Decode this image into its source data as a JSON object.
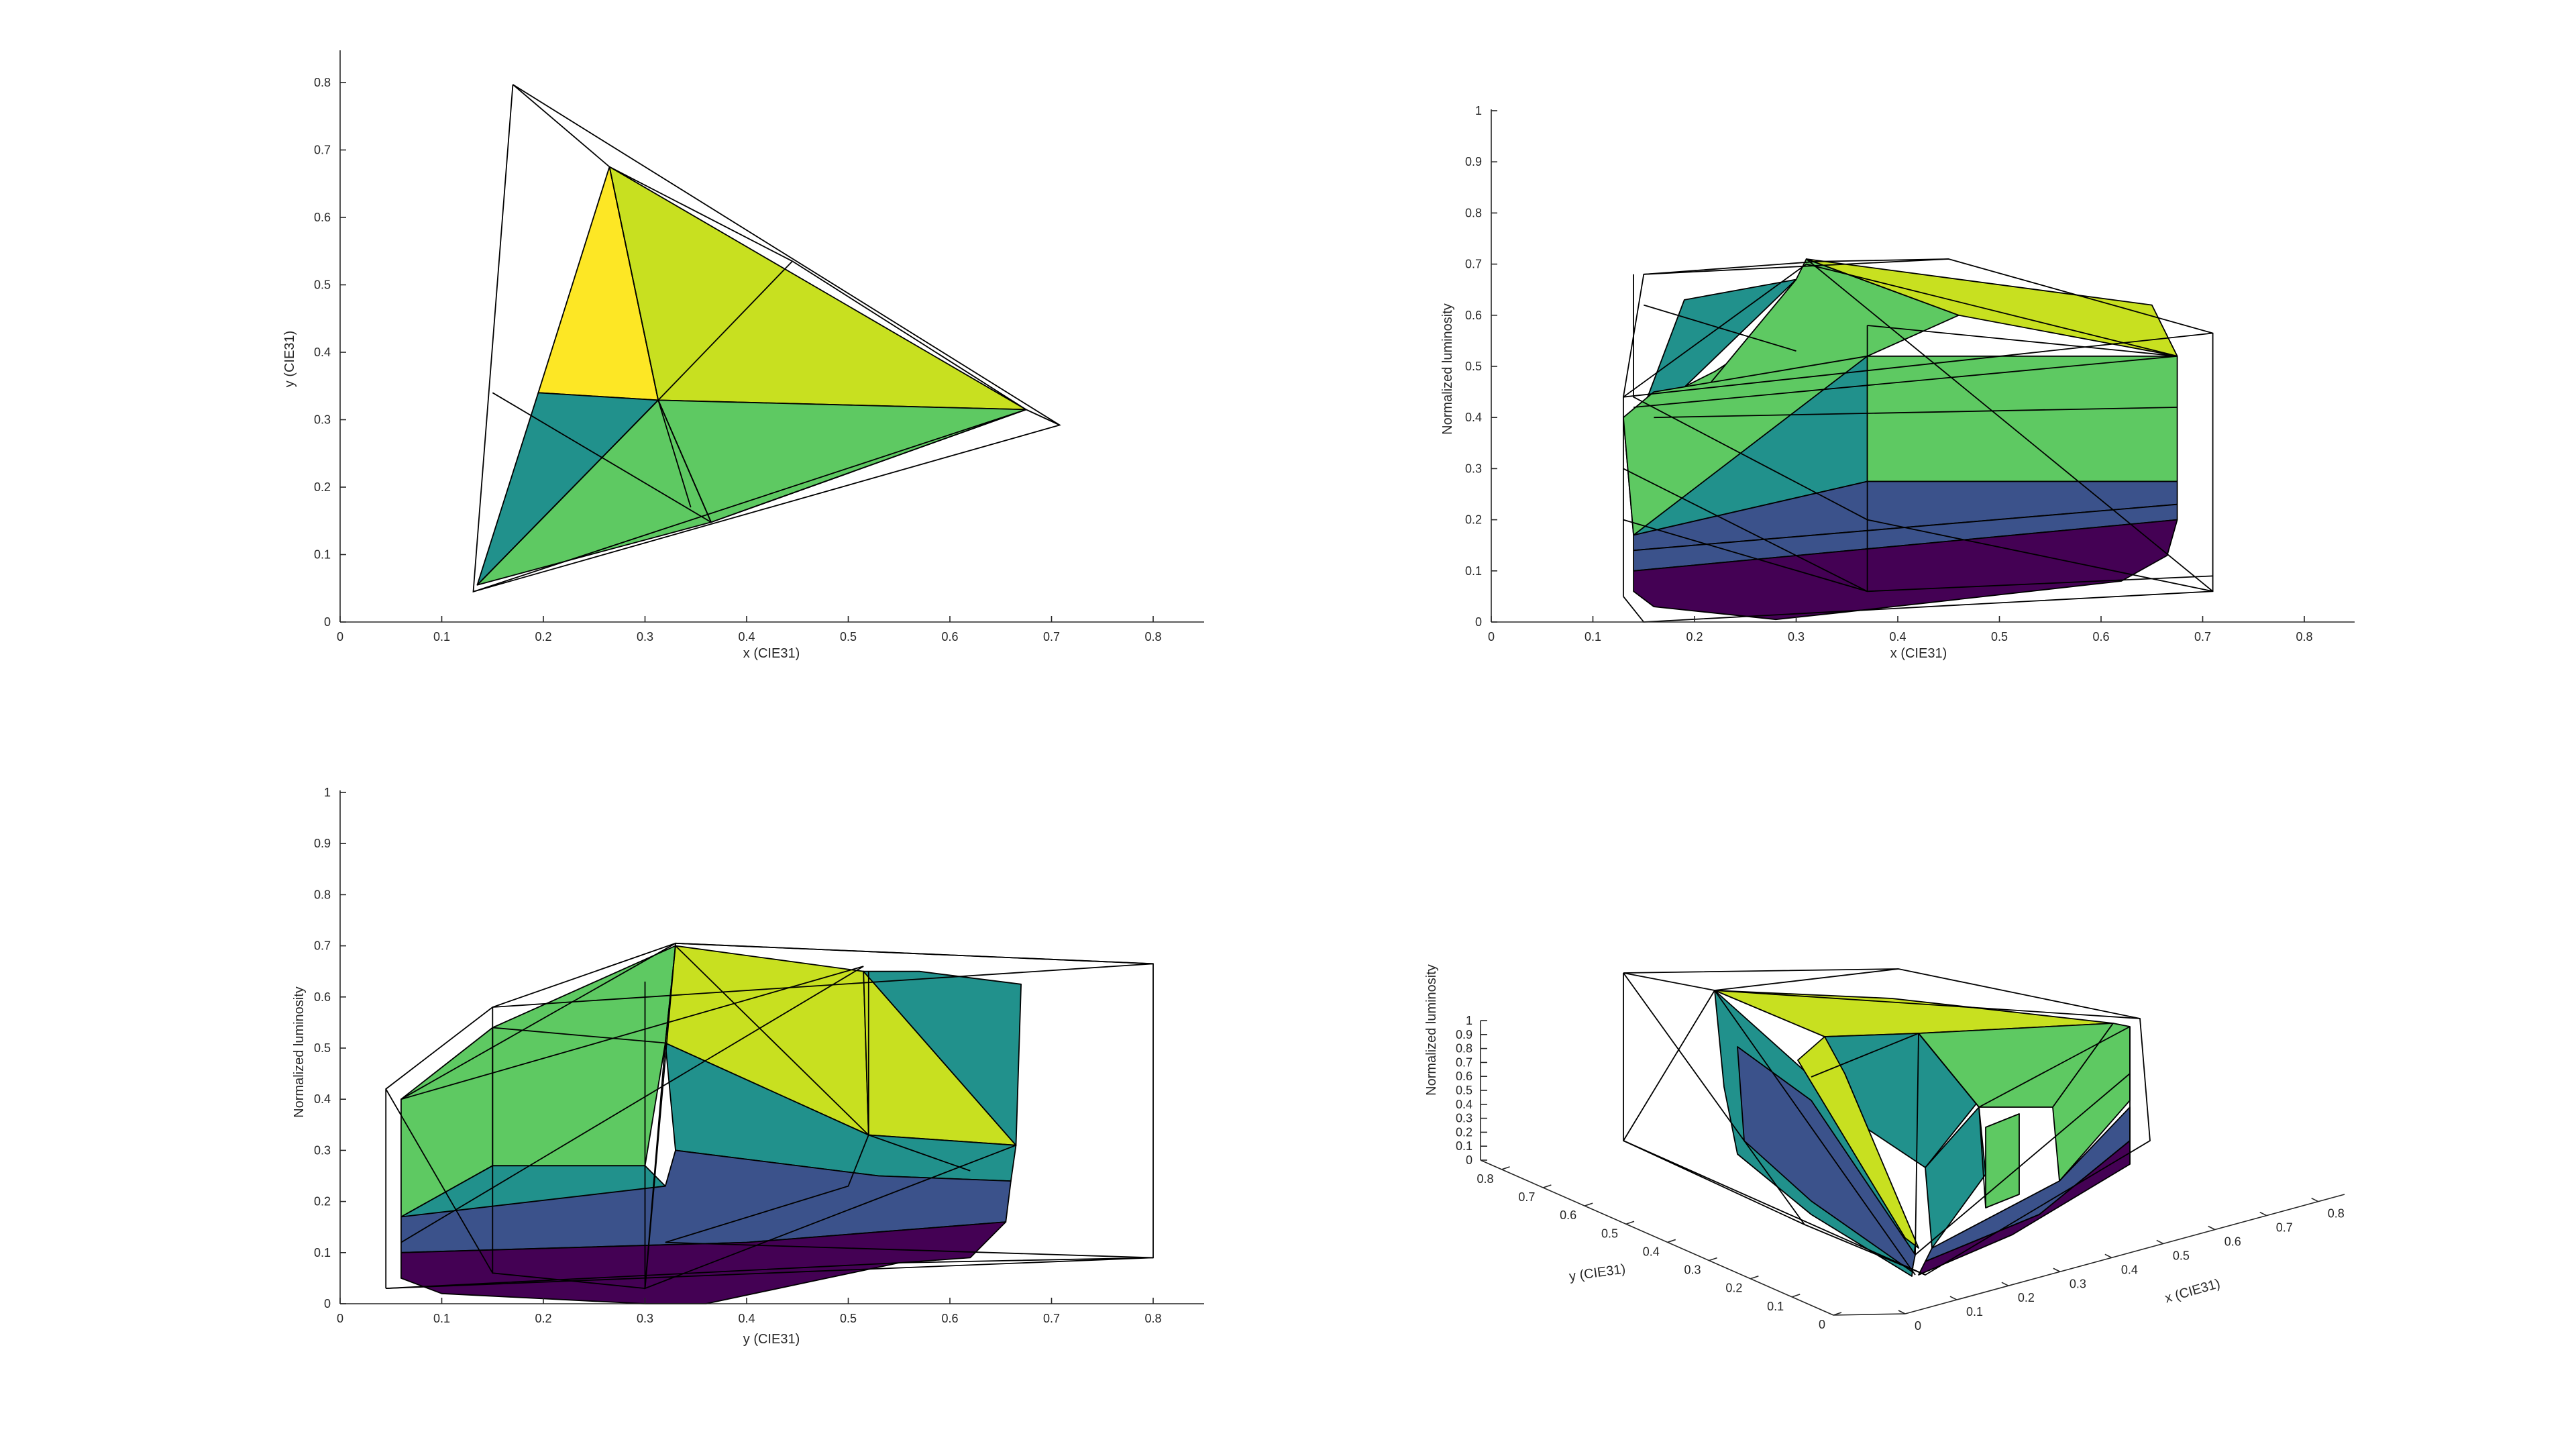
{
  "chart_data": [
    {
      "type": "surface",
      "view": "top (x-y projection)",
      "xlabel": "x (CIE31)",
      "ylabel": "y (CIE31)",
      "xlim": [
        0,
        0.85
      ],
      "ylim": [
        0,
        0.85
      ],
      "xticks": [
        "0",
        "0.1",
        "0.2",
        "0.3",
        "0.4",
        "0.5",
        "0.6",
        "0.7",
        "0.8"
      ],
      "yticks": [
        "0",
        "0.1",
        "0.2",
        "0.3",
        "0.4",
        "0.5",
        "0.6",
        "0.7",
        "0.8"
      ],
      "colormap": [
        "#440154",
        "#3b528b",
        "#21918c",
        "#5ec962",
        "#c8e020",
        "#fde725"
      ],
      "primaries_xy": {
        "red": [
          0.675,
          0.315
        ],
        "green": [
          0.265,
          0.675
        ],
        "blue": [
          0.135,
          0.055
        ],
        "white": [
          0.313,
          0.329
        ]
      },
      "outer_triangle_xy": [
        [
          0.17,
          0.797
        ],
        [
          0.708,
          0.292
        ],
        [
          0.131,
          0.045
        ]
      ]
    },
    {
      "type": "surface",
      "view": "side (x vs luminosity)",
      "xlabel": "x (CIE31)",
      "ylabel": "Normalized luminosity",
      "xlim": [
        0,
        0.85
      ],
      "ylim": [
        0,
        1
      ],
      "xticks": [
        "0",
        "0.1",
        "0.2",
        "0.3",
        "0.4",
        "0.5",
        "0.6",
        "0.7",
        "0.8"
      ],
      "yticks": [
        "0",
        "0.1",
        "0.2",
        "0.3",
        "0.4",
        "0.5",
        "0.6",
        "0.7",
        "0.8",
        "0.9",
        "1"
      ]
    },
    {
      "type": "surface",
      "view": "side (y vs luminosity)",
      "xlabel": "y (CIE31)",
      "ylabel": "Normalized luminosity",
      "xlim": [
        0,
        0.85
      ],
      "ylim": [
        0,
        1
      ],
      "xticks": [
        "0",
        "0.1",
        "0.2",
        "0.3",
        "0.4",
        "0.5",
        "0.6",
        "0.7",
        "0.8"
      ],
      "yticks": [
        "0",
        "0.1",
        "0.2",
        "0.3",
        "0.4",
        "0.5",
        "0.6",
        "0.7",
        "0.8",
        "0.9",
        "1"
      ]
    },
    {
      "type": "surface",
      "view": "3d perspective",
      "xlabel": "x (CIE31)",
      "ylabel": "y (CIE31)",
      "zlabel": "Normalized luminosity",
      "xticks": [
        "0",
        "0.1",
        "0.2",
        "0.3",
        "0.4",
        "0.5",
        "0.6",
        "0.7",
        "0.8"
      ],
      "yticks": [
        "0",
        "0.1",
        "0.2",
        "0.3",
        "0.4",
        "0.5",
        "0.6",
        "0.7",
        "0.8"
      ],
      "zticks": [
        "0",
        "0.1",
        "0.2",
        "0.3",
        "0.4",
        "0.5",
        "0.6",
        "0.7",
        "0.8",
        "0.9",
        "1"
      ]
    }
  ]
}
